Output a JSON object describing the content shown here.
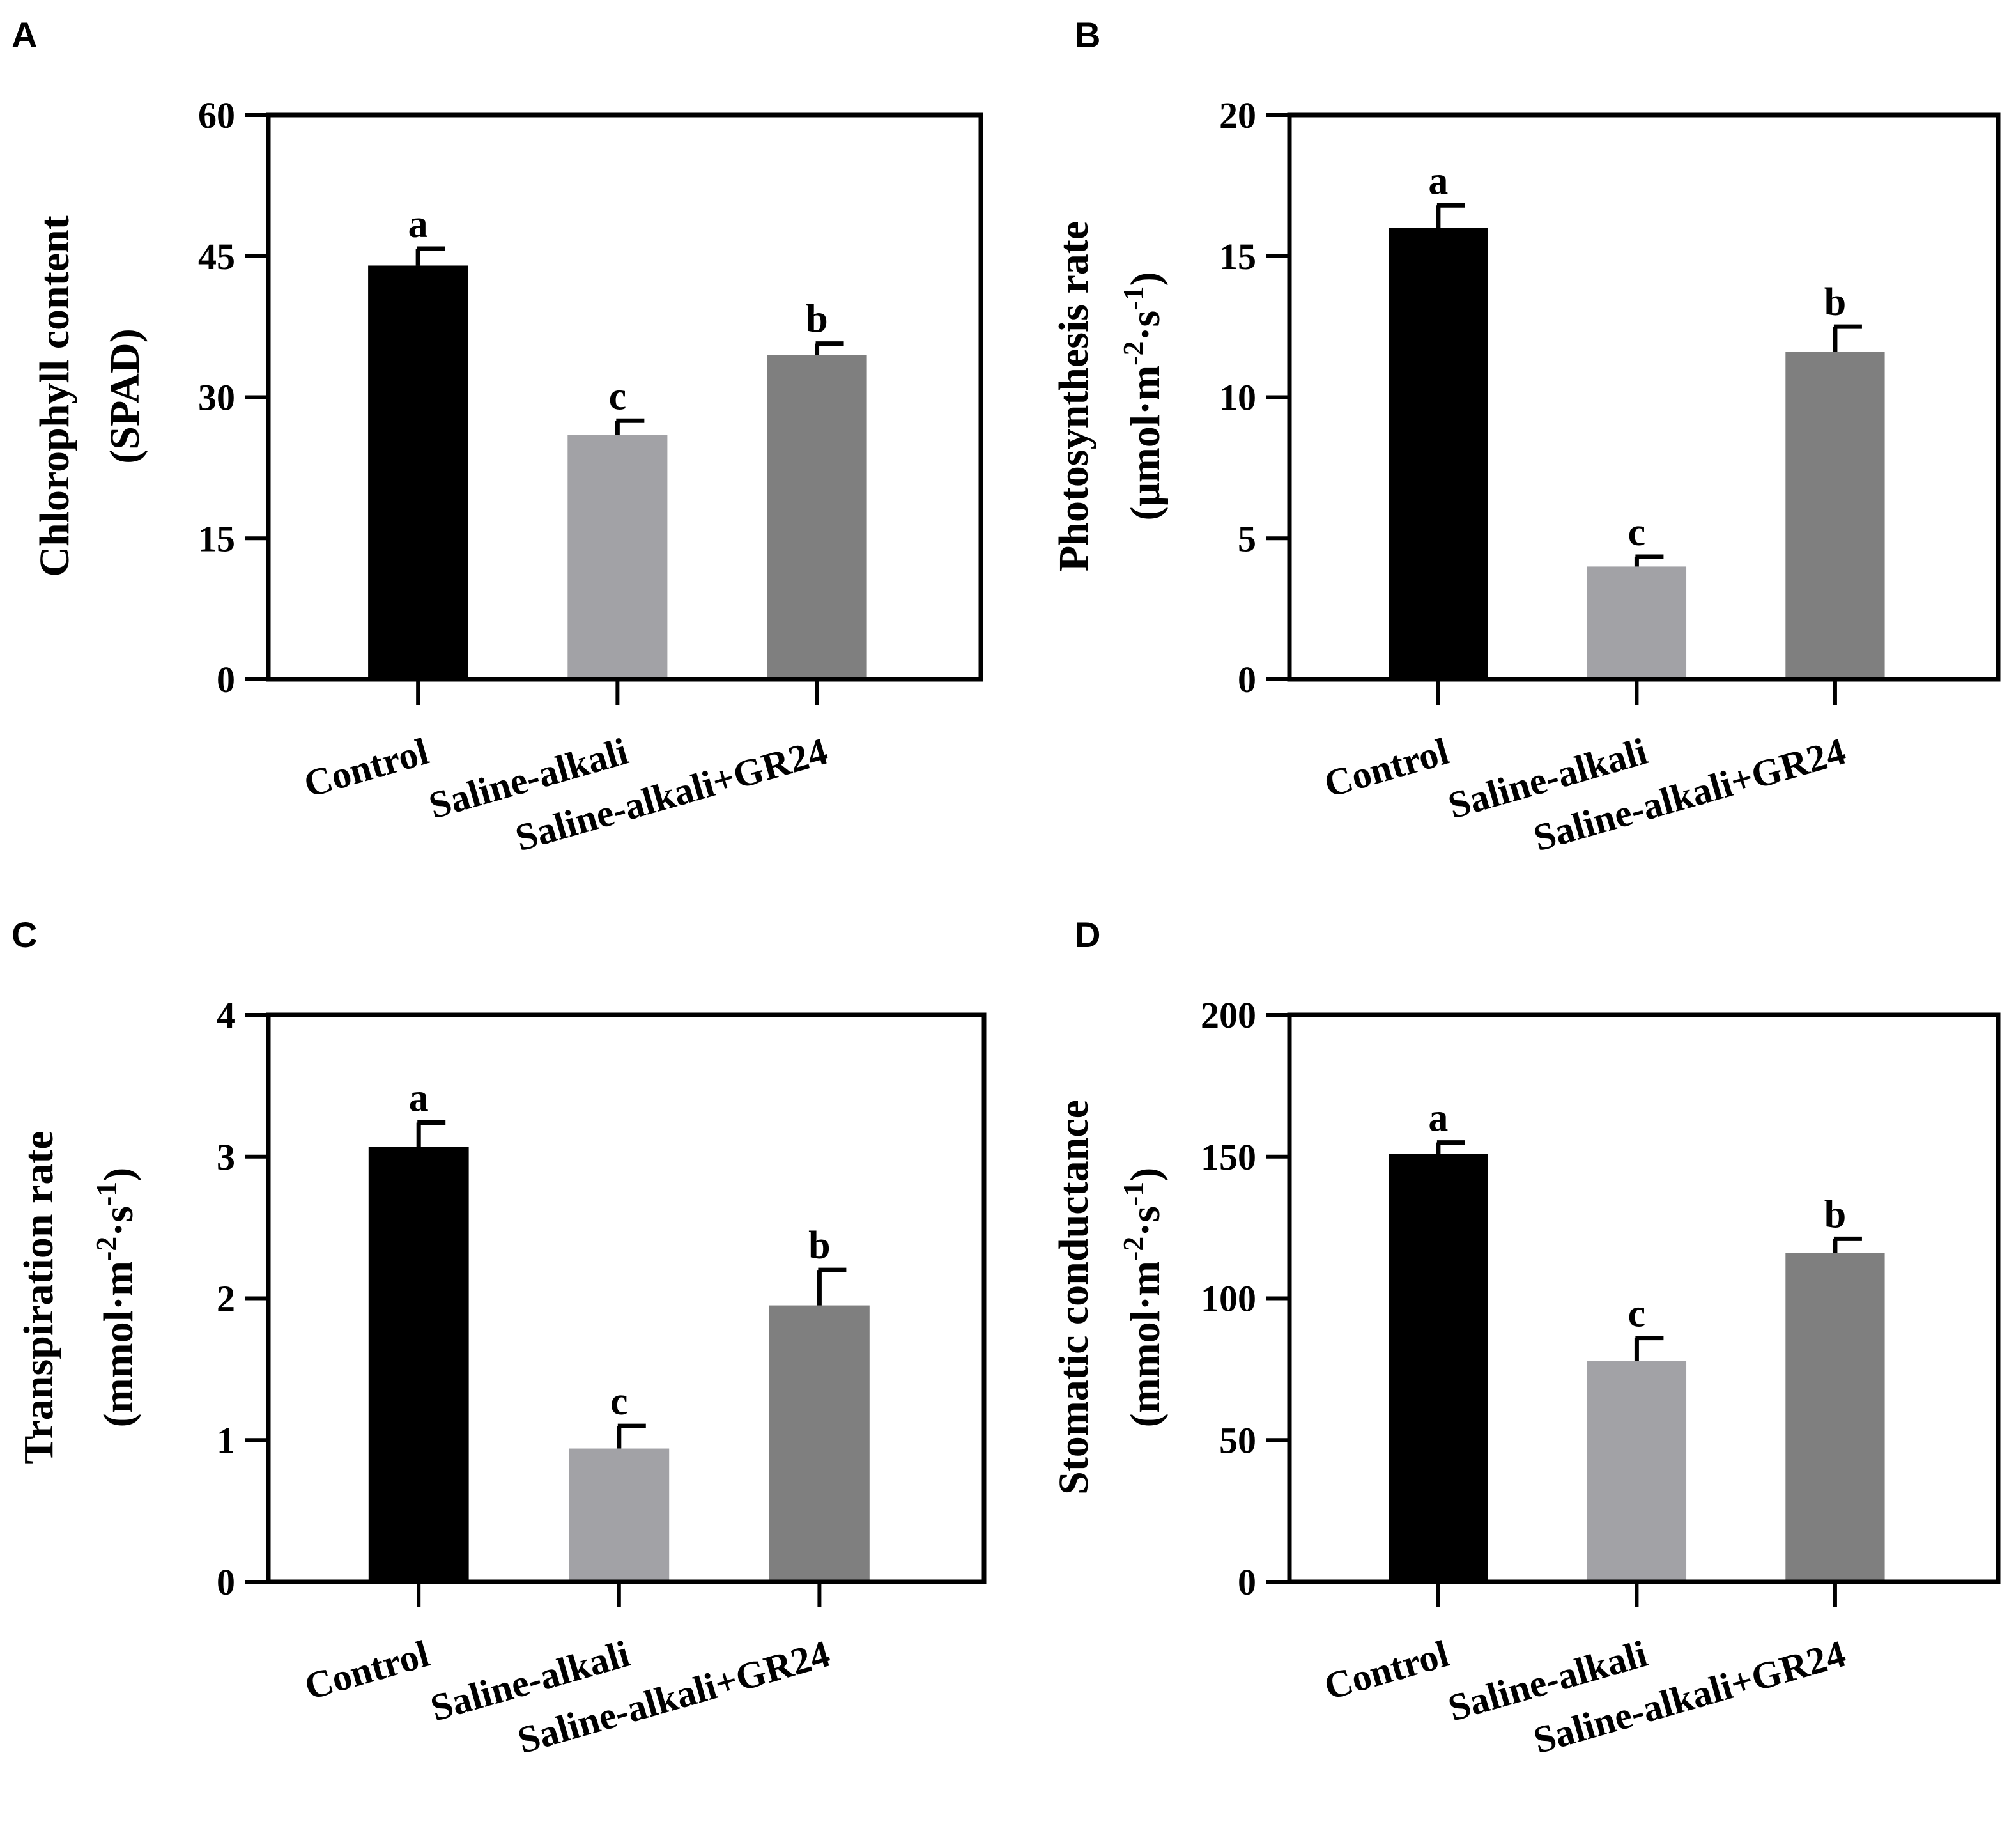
{
  "chart_data": [
    {
      "panel": "A",
      "type": "bar",
      "categories": [
        "Control",
        "Saline-alkali",
        "Saline-alkali+GR24"
      ],
      "values": [
        44,
        26,
        34.5
      ],
      "errors": [
        1.8,
        1.5,
        1.2
      ],
      "significance": [
        "a",
        "c",
        "b"
      ],
      "colors": [
        "#000000",
        "#a2a2a6",
        "#7f7f7f"
      ],
      "ylabel_lines": [
        "Chlorophyll content",
        "(SPAD)"
      ],
      "ylim": [
        0,
        60
      ],
      "yticks": [
        0,
        15,
        30,
        45,
        60
      ]
    },
    {
      "panel": "B",
      "type": "bar",
      "categories": [
        "Control",
        "Saline-alkali",
        "Saline-alkali+GR24"
      ],
      "values": [
        16,
        4,
        11.6
      ],
      "errors": [
        0.8,
        0.35,
        0.9
      ],
      "significance": [
        "a",
        "c",
        "b"
      ],
      "colors": [
        "#000000",
        "#a2a2a6",
        "#7f7f7f"
      ],
      "ylabel_lines": [
        "Photosynthesis rate",
        "(μmol·m-2·s-1)"
      ],
      "ylim": [
        0,
        20
      ],
      "yticks": [
        0,
        5,
        10,
        15,
        20
      ]
    },
    {
      "panel": "C",
      "type": "bar",
      "categories": [
        "Control",
        "Saline-alkali",
        "Saline-alkali+GR24"
      ],
      "values": [
        3.07,
        0.94,
        1.95
      ],
      "errors": [
        0.17,
        0.16,
        0.25
      ],
      "significance": [
        "a",
        "c",
        "b"
      ],
      "colors": [
        "#000000",
        "#a2a2a6",
        "#7f7f7f"
      ],
      "ylabel_lines": [
        "Transpiration rate",
        "(mmol·m-2·s-1)"
      ],
      "ylim": [
        0,
        4
      ],
      "yticks": [
        0,
        1,
        2,
        3,
        4
      ]
    },
    {
      "panel": "D",
      "type": "bar",
      "categories": [
        "Control",
        "Saline-alkali",
        "Saline-alkali+GR24"
      ],
      "values": [
        151,
        78,
        116
      ],
      "errors": [
        4,
        8,
        5
      ],
      "significance": [
        "a",
        "c",
        "b"
      ],
      "colors": [
        "#000000",
        "#a2a2a6",
        "#7f7f7f"
      ],
      "ylabel_lines": [
        "Stomatic conductance",
        "(mmol·m-2·s-1)"
      ],
      "ylim": [
        0,
        200
      ],
      "yticks": [
        0,
        50,
        100,
        150,
        200
      ]
    }
  ]
}
